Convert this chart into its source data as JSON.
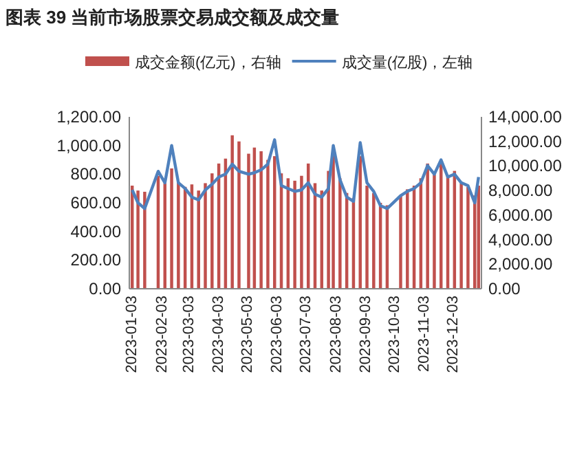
{
  "chart_data": {
    "type": "bar",
    "title": "图表 39  当前市场股票交易成交额及成交量",
    "x": [
      "2023-01-03",
      "2023-01-09",
      "2023-01-16",
      "2023-01-30",
      "2023-02-06",
      "2023-02-13",
      "2023-02-20",
      "2023-02-27",
      "2023-03-06",
      "2023-03-13",
      "2023-03-20",
      "2023-03-27",
      "2023-04-03",
      "2023-04-10",
      "2023-04-17",
      "2023-04-24",
      "2023-05-04",
      "2023-05-10",
      "2023-05-17",
      "2023-05-24",
      "2023-05-31",
      "2023-06-07",
      "2023-06-14",
      "2023-06-21",
      "2023-06-28",
      "2023-07-05",
      "2023-07-12",
      "2023-07-19",
      "2023-07-26",
      "2023-07-31",
      "2023-08-07",
      "2023-08-14",
      "2023-08-21",
      "2023-08-28",
      "2023-09-04",
      "2023-09-11",
      "2023-09-18",
      "2023-09-25",
      "2023-10-09",
      "2023-10-16",
      "2023-10-23",
      "2023-10-30",
      "2023-11-06",
      "2023-11-13",
      "2023-11-20",
      "2023-11-27",
      "2023-12-04",
      "2023-12-11",
      "2023-12-18",
      "2023-12-25",
      "2023-12-29"
    ],
    "series": [
      {
        "name": "成交金额(亿元)，右轴",
        "axis": "y2",
        "color": "#c0504d",
        "values": [
          8400,
          8000,
          7900,
          9200,
          8600,
          9800,
          8700,
          8300,
          8500,
          8000,
          8600,
          9400,
          10200,
          10600,
          12500,
          12000,
          11000,
          11500,
          11200,
          10500,
          10800,
          9400,
          9000,
          8800,
          9200,
          10200,
          8600,
          8000,
          9600,
          11000,
          9000,
          7800,
          7400,
          10800,
          8400,
          7800,
          7000,
          6800,
          7600,
          8100,
          8400,
          9000,
          10200,
          9300,
          10400,
          9200,
          9600,
          8600,
          8300,
          7600,
          8400
        ]
      },
      {
        "name": "成交量(亿股)，左轴",
        "type": "line",
        "axis": "y",
        "color": "#4f81bd",
        "values": [
          690,
          600,
          560,
          820,
          740,
          1000,
          740,
          700,
          640,
          620,
          690,
          730,
          780,
          800,
          870,
          820,
          800,
          810,
          830,
          870,
          1040,
          720,
          700,
          680,
          690,
          740,
          660,
          640,
          700,
          1000,
          760,
          640,
          610,
          1020,
          740,
          680,
          580,
          560,
          650,
          680,
          700,
          740,
          860,
          800,
          900,
          780,
          800,
          740,
          720,
          600,
          780
        ]
      }
    ],
    "xlim": [
      "2022-12-31",
      "2024-01-01"
    ],
    "xticks": [
      "2023-01-03",
      "2023-02-03",
      "2023-03-03",
      "2023-04-03",
      "2023-05-03",
      "2023-06-03",
      "2023-07-03",
      "2023-08-03",
      "2023-09-03",
      "2023-10-03",
      "2023-11-03",
      "2023-12-03"
    ],
    "ylim": [
      0,
      1200
    ],
    "yticks": [
      {
        "value": 0,
        "label": "0.00"
      },
      {
        "value": 200,
        "label": "200.00"
      },
      {
        "value": 400,
        "label": "400.00"
      },
      {
        "value": 600,
        "label": "600.00"
      },
      {
        "value": 800,
        "label": "800.00"
      },
      {
        "value": 1000,
        "label": "1,000.00"
      },
      {
        "value": 1200,
        "label": "1,200.00"
      }
    ],
    "y2lim": [
      0,
      14000
    ],
    "y2ticks": [
      {
        "value": 0,
        "label": "0.00"
      },
      {
        "value": 2000,
        "label": "2,000.00"
      },
      {
        "value": 4000,
        "label": "4,000.00"
      },
      {
        "value": 6000,
        "label": "6,000.00"
      },
      {
        "value": 8000,
        "label": "8,000.00"
      },
      {
        "value": 10000,
        "label": "10,000.00"
      },
      {
        "value": 12000,
        "label": "12,000.00"
      },
      {
        "value": 14000,
        "label": "14,000.00"
      }
    ],
    "legend": "top",
    "grid": false,
    "marker": "none",
    "line_style": "solid"
  }
}
